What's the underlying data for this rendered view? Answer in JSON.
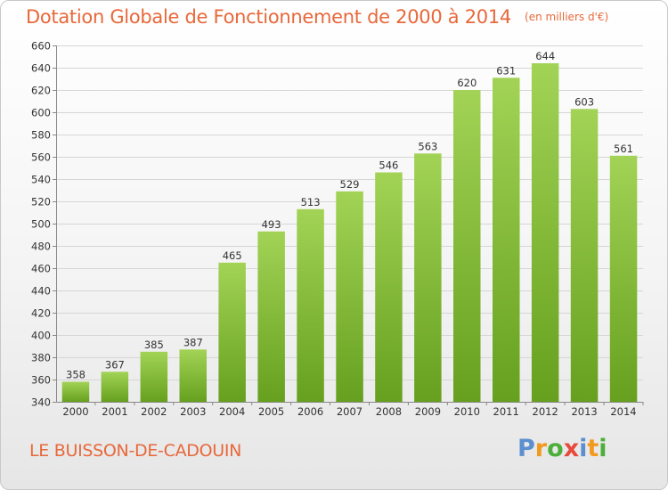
{
  "header": {
    "title": "Dotation Globale de Fonctionnement de 2000 à 2014",
    "subtitle": "(en milliers d'€)"
  },
  "footer": {
    "commune": "LE BUISSON-DE-CADOUIN",
    "brand": "Proxiti"
  },
  "colors": {
    "title": "#e8683a",
    "bar_top": "#a2d356",
    "bar_bottom": "#66a01e",
    "grid": "#d6d6d6",
    "brand_letters": [
      "#5b8fcf",
      "#f29a1f",
      "#4caf3a",
      "#e84a3a",
      "#5b8fcf",
      "#f29a1f",
      "#4caf3a"
    ]
  },
  "chart_data": {
    "type": "bar",
    "title": "Dotation Globale de Fonctionnement de 2000 à 2014",
    "subtitle": "(en milliers d'€)",
    "categories": [
      "2000",
      "2001",
      "2002",
      "2003",
      "2004",
      "2005",
      "2006",
      "2007",
      "2008",
      "2009",
      "2010",
      "2011",
      "2012",
      "2013",
      "2014"
    ],
    "values": [
      358,
      367,
      385,
      387,
      465,
      493,
      513,
      529,
      546,
      563,
      620,
      631,
      644,
      603,
      561
    ],
    "ylim": [
      340,
      660
    ],
    "yticks": [
      340,
      360,
      380,
      400,
      420,
      440,
      460,
      480,
      500,
      520,
      540,
      560,
      580,
      600,
      620,
      640,
      660
    ],
    "grid": true,
    "data_labels": true
  }
}
